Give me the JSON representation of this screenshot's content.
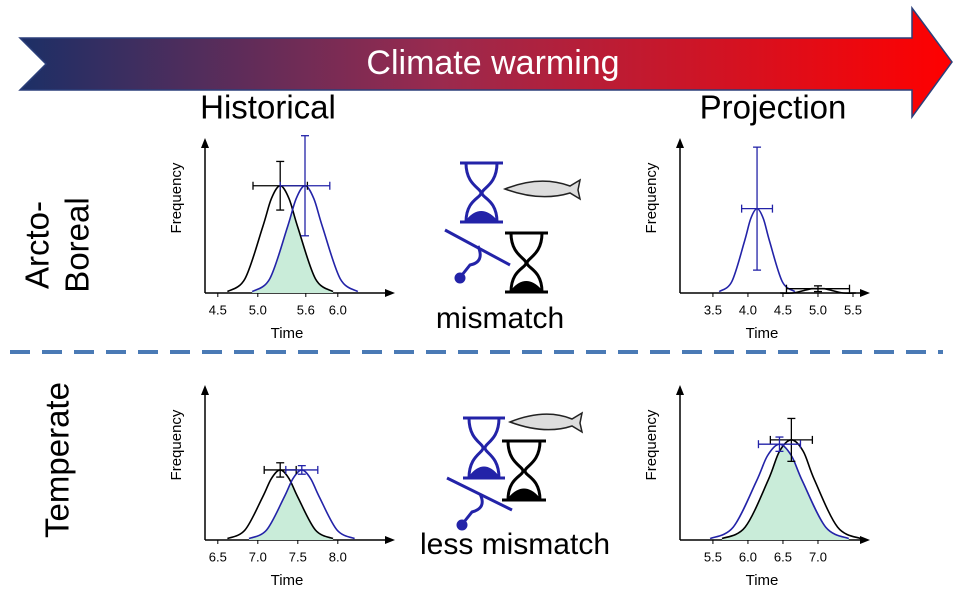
{
  "banner": "Climate warming",
  "columns": [
    "Historical",
    "Projection"
  ],
  "rows": [
    {
      "label_lines": [
        "Arcto-",
        "Boreal"
      ]
    },
    {
      "label_lines": [
        "Temperate"
      ]
    }
  ],
  "captions": [
    "mismatch",
    "less mismatch"
  ],
  "chart_data": [
    {
      "type": "line",
      "xlabel": "Time",
      "ylabel": "Frequency",
      "xlim": [
        4.34,
        6.59
      ],
      "ylim": [
        0,
        1
      ],
      "xticks": [
        4.5,
        {
          "value": 5,
          "label": "5.0"
        },
        5.6,
        {
          "value": 6,
          "label": "6.0"
        }
      ],
      "overlap_fill": "#c9ecd9",
      "series": [
        {
          "color": "#000000",
          "x": [
            4.62,
            4.84,
            5.06,
            5.17,
            5.28,
            5.39,
            5.5,
            5.72,
            5.94
          ],
          "values": [
            0.01,
            0.1,
            0.46,
            0.66,
            0.75,
            0.66,
            0.46,
            0.1,
            0.01
          ],
          "error_bar": {
            "x": 5.28,
            "y": 0.75,
            "x_error": 0.34,
            "y_error": 0.17
          }
        },
        {
          "color": "#2323a8",
          "x": [
            4.93,
            5.15,
            5.37,
            5.48,
            5.59,
            5.7,
            5.81,
            6.03,
            6.25
          ],
          "values": [
            0.01,
            0.1,
            0.46,
            0.66,
            0.75,
            0.66,
            0.46,
            0.1,
            0.01
          ],
          "error_bar": {
            "x": 5.59,
            "y": 0.75,
            "x_error": 0.31,
            "y_error": 0.35
          }
        }
      ]
    },
    {
      "type": "line",
      "xlabel": "Time",
      "ylabel": "Frequency",
      "xlim": [
        3.03,
        5.6
      ],
      "ylim": [
        0,
        1
      ],
      "xticks": [
        3.5,
        {
          "value": 4,
          "label": "4.0"
        },
        4.5,
        {
          "value": 5,
          "label": "5.0"
        },
        5.5
      ],
      "series": [
        {
          "color": "#000000",
          "x": [
            4.46,
            4.64,
            4.82,
            4.91,
            5.0,
            5.09,
            5.18,
            5.36,
            5.54
          ],
          "values": [
            0,
            0,
            0.02,
            0.03,
            0.03,
            0.03,
            0.02,
            0,
            0
          ],
          "error_bar": {
            "x": 5.0,
            "y": 0.03,
            "x_error": 0.45,
            "y_error": 0.02
          }
        },
        {
          "color": "#2323a8",
          "x": [
            3.59,
            3.77,
            3.95,
            4.04,
            4.13,
            4.22,
            4.31,
            4.49,
            4.67
          ],
          "values": [
            0.01,
            0.08,
            0.36,
            0.52,
            0.59,
            0.52,
            0.36,
            0.08,
            0.01
          ],
          "error_bar": {
            "x": 4.13,
            "y": 0.59,
            "x_error": 0.22,
            "y_error": 0.43
          }
        }
      ]
    },
    {
      "type": "line",
      "xlabel": "Time",
      "ylabel": "Frequency",
      "xlim": [
        6.34,
        8.59
      ],
      "ylim": [
        0,
        1
      ],
      "xticks": [
        6.5,
        {
          "value": 7,
          "label": "7.0"
        },
        7.5,
        {
          "value": 8,
          "label": "8.0"
        }
      ],
      "overlap_fill": "#c9ecd9",
      "series": [
        {
          "color": "#000000",
          "x": [
            6.62,
            6.84,
            7.06,
            7.17,
            7.28,
            7.39,
            7.5,
            7.72,
            7.94
          ],
          "values": [
            0.01,
            0.07,
            0.3,
            0.43,
            0.49,
            0.43,
            0.3,
            0.07,
            0.01
          ],
          "error_bar": {
            "x": 7.28,
            "y": 0.49,
            "x_error": 0.2,
            "y_error": 0.05
          }
        },
        {
          "color": "#2323a8",
          "x": [
            6.89,
            7.11,
            7.33,
            7.44,
            7.55,
            7.66,
            7.77,
            7.99,
            8.21
          ],
          "values": [
            0.01,
            0.07,
            0.3,
            0.43,
            0.49,
            0.43,
            0.3,
            0.07,
            0.01
          ],
          "error_bar": {
            "x": 7.55,
            "y": 0.49,
            "x_error": 0.2,
            "y_error": 0.03
          }
        }
      ]
    },
    {
      "type": "line",
      "xlabel": "Time",
      "ylabel": "Frequency",
      "xlim": [
        5.03,
        7.6
      ],
      "ylim": [
        0,
        1
      ],
      "xticks": [
        5.5,
        {
          "value": 6,
          "label": "6.0"
        },
        6.5,
        {
          "value": 7,
          "label": "7.0"
        }
      ],
      "overlap_fill": "#c9ecd9",
      "series": [
        {
          "color": "#000000",
          "x": [
            5.63,
            5.96,
            6.29,
            6.45,
            6.62,
            6.79,
            6.95,
            7.28,
            7.61
          ],
          "values": [
            0.01,
            0.09,
            0.42,
            0.62,
            0.7,
            0.62,
            0.42,
            0.09,
            0.01
          ],
          "error_bar": {
            "x": 6.62,
            "y": 0.7,
            "x_error": 0.3,
            "y_error": 0.15
          }
        },
        {
          "color": "#2323a8",
          "x": [
            5.46,
            5.79,
            6.12,
            6.28,
            6.45,
            6.62,
            6.78,
            7.11,
            7.44
          ],
          "values": [
            0.01,
            0.09,
            0.41,
            0.59,
            0.67,
            0.59,
            0.41,
            0.09,
            0.01
          ],
          "error_bar": {
            "x": 6.45,
            "y": 0.67,
            "x_error": 0.3,
            "y_error": 0.05
          }
        }
      ]
    }
  ]
}
